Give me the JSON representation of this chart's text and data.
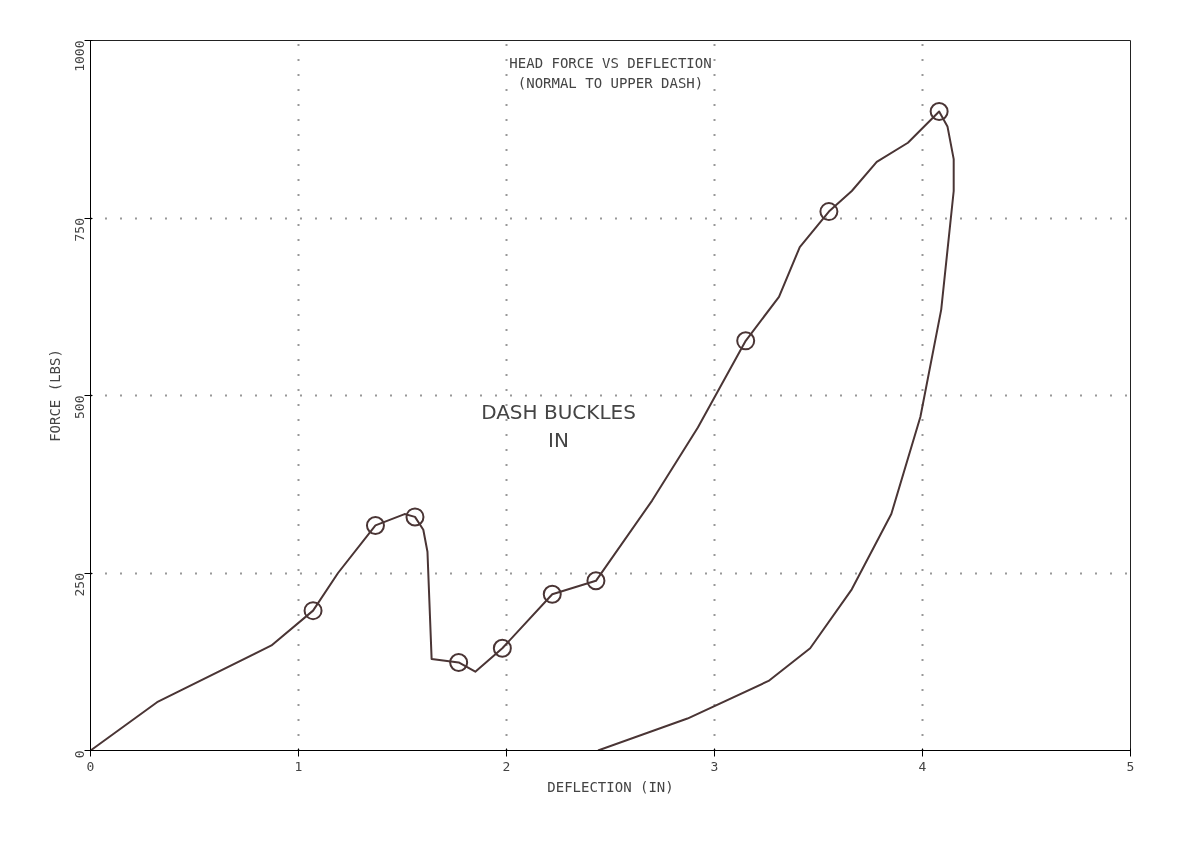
{
  "chart_data": {
    "type": "line",
    "title": "HEAD FORCE VS DEFLECTION",
    "subtitle": "(NORMAL TO UPPER DASH)",
    "xlabel": "DEFLECTION (IN)",
    "ylabel": "FORCE (LBS)",
    "annotations": [
      "DASH BUCKLES\nIN"
    ],
    "xlim": [
      0,
      5
    ],
    "ylim": [
      0,
      1000
    ],
    "xticks": [
      0,
      1,
      2,
      3,
      4,
      5
    ],
    "yticks": [
      0,
      250,
      500,
      750,
      1000
    ],
    "grid": true,
    "line_style": "solid",
    "marker": "none",
    "series": [
      {
        "color": "#4a3535",
        "x": [
          0,
          0.32,
          0.87,
          1.07,
          1.19,
          1.37,
          1.51,
          1.56,
          1.6,
          1.62,
          1.64,
          1.77,
          1.85,
          1.98,
          2.22,
          2.43,
          2.7,
          2.92,
          3.15,
          3.31,
          3.41,
          3.55,
          3.66,
          3.78,
          3.93,
          4.08,
          4.12,
          4.15,
          4.15,
          4.09,
          3.99,
          3.85,
          3.66,
          3.46,
          3.26,
          2.87,
          2.44
        ],
        "values": [
          0,
          68,
          148,
          197,
          250,
          317,
          333,
          329,
          311,
          280,
          129,
          124,
          111,
          144,
          220,
          239,
          352,
          455,
          577,
          639,
          709,
          759,
          788,
          829,
          856,
          900,
          879,
          833,
          788,
          621,
          470,
          333,
          227,
          144,
          98,
          45,
          0
        ]
      },
      {
        "type": "scatter",
        "marker": "circle",
        "color": "#4a3535",
        "x": [
          1.07,
          1.37,
          1.56,
          1.77,
          1.98,
          2.22,
          2.43,
          3.15,
          3.55,
          4.08
        ],
        "values": [
          197,
          317,
          329,
          124,
          144,
          220,
          239,
          577,
          759,
          900
        ]
      }
    ]
  }
}
